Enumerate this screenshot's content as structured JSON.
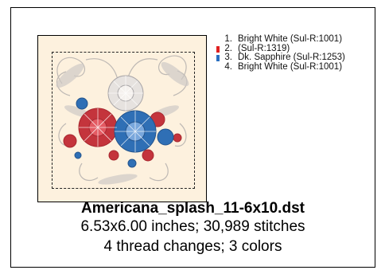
{
  "design": {
    "filename": "Americana_splash_11-6x10.dst",
    "dimensions_stitches": "6.53x6.00 inches; 30,989 stitches",
    "threads_colors": "4 thread changes; 3 colors"
  },
  "threads": [
    {
      "num": "1.",
      "label": "Bright White (Sul-R:1001)",
      "color": "#ffffff",
      "swatch": false
    },
    {
      "num": "2.",
      "label": " (Sul-R:1319)",
      "color": "#e02020",
      "swatch": true
    },
    {
      "num": "3.",
      "label": "Dk. Sapphire (Sul-R:1253)",
      "color": "#2a6fc0",
      "swatch": true
    },
    {
      "num": "4.",
      "label": "Bright White (Sul-R:1001)",
      "color": "#ffffff",
      "swatch": false
    }
  ],
  "colors": {
    "background": "#fdf1de",
    "red_thread": "#c4343c",
    "blue_thread": "#2f6fb5",
    "white_thread": "#d8d4d0"
  }
}
